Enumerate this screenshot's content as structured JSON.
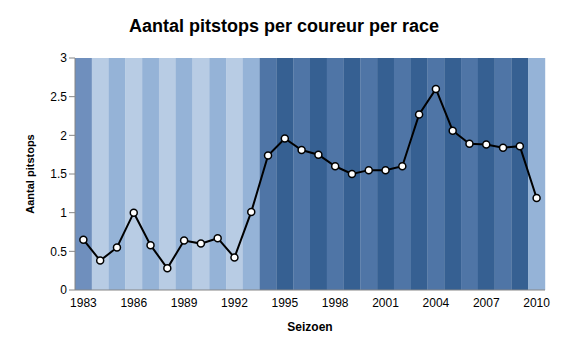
{
  "chart_data": {
    "type": "line",
    "title": "Aantal pitstops per coureur per race",
    "x_label": "Seizoen",
    "y_label": "Aantal pitstops",
    "categories": [
      "1983",
      null,
      null,
      "1986",
      null,
      null,
      "1989",
      null,
      null,
      "1992",
      null,
      null,
      "1995",
      null,
      null,
      "1998",
      null,
      null,
      "2001",
      null,
      null,
      "2004",
      null,
      null,
      "2007",
      null,
      null,
      "2010"
    ],
    "values": [
      0.65,
      0.38,
      0.55,
      1.0,
      0.58,
      0.28,
      0.64,
      0.6,
      0.67,
      0.42,
      1.01,
      1.74,
      1.96,
      1.81,
      1.75,
      1.6,
      1.5,
      1.55,
      1.55,
      1.6,
      2.27,
      2.6,
      2.06,
      1.89,
      1.88,
      1.84,
      1.86,
      1.19
    ],
    "color": "#000000",
    "marker": "circle",
    "ylim": [
      0,
      3
    ],
    "yticks": [
      0,
      0.5,
      1,
      1.5,
      2,
      2.5,
      3
    ],
    "grid": false
  }
}
